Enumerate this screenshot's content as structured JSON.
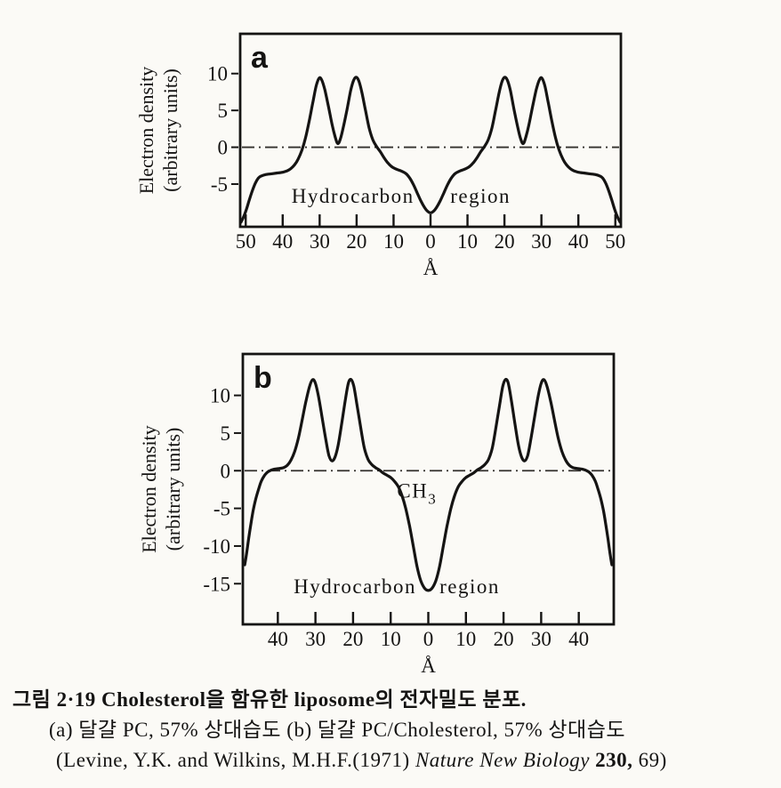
{
  "figure": {
    "background": "#fbfaf6",
    "ink": "#151413",
    "description": "Scanned textbook figure: electron density profiles of liposome bilayers"
  },
  "chart_data": [
    {
      "type": "line",
      "panel_label": "a",
      "xlabel": "Å",
      "ylabel": "Electron density (arbitrary units)",
      "ylabel_lines": [
        "Electron density",
        "(arbitrary units)"
      ],
      "xlim": [
        -51.5,
        51.5
      ],
      "ylim": [
        -10.8,
        15.4
      ],
      "x_tick_values": [
        -50,
        -40,
        -30,
        -20,
        -10,
        0,
        10,
        20,
        30,
        40,
        50
      ],
      "x_tick_labels": [
        "50",
        "40",
        "30",
        "20",
        "10",
        "0",
        "10",
        "20",
        "30",
        "40",
        "50"
      ],
      "y_tick_values": [
        10,
        5,
        0,
        -5
      ],
      "y_tick_labels": [
        "10",
        "5",
        "0",
        "-5"
      ],
      "grid": false,
      "zero_line_style": "dash-dot",
      "annotations": [
        {
          "text": "Hydrocarbon",
          "x": -21,
          "y": -6.6
        },
        {
          "text": "region",
          "x": 13.5,
          "y": -6.6
        }
      ],
      "series": [
        {
          "name": "electron-density-profile-egg-PC",
          "symmetric_about_x0": true,
          "points_left_half": [
            [
              -51.3,
              -10.2
            ],
            [
              -50.6,
              -9.5
            ],
            [
              -49.8,
              -8.4
            ],
            [
              -49,
              -7.1
            ],
            [
              -48.2,
              -5.9
            ],
            [
              -47.4,
              -4.9
            ],
            [
              -46.6,
              -4.2
            ],
            [
              -45.8,
              -3.9
            ],
            [
              -44.5,
              -3.7
            ],
            [
              -43,
              -3.6
            ],
            [
              -41.5,
              -3.5
            ],
            [
              -40,
              -3.4
            ],
            [
              -38.8,
              -3.2
            ],
            [
              -37.8,
              -2.9
            ],
            [
              -36.8,
              -2.4
            ],
            [
              -35.8,
              -1.6
            ],
            [
              -34.8,
              -0.4
            ],
            [
              -33.8,
              1.3
            ],
            [
              -32.8,
              3.6
            ],
            [
              -31.8,
              6.2
            ],
            [
              -30.9,
              8.4
            ],
            [
              -30.1,
              9.4
            ],
            [
              -29.4,
              9.1
            ],
            [
              -28.6,
              7.8
            ],
            [
              -27.6,
              5.5
            ],
            [
              -26.6,
              3.0
            ],
            [
              -25.8,
              1.4
            ],
            [
              -25.1,
              0.5
            ],
            [
              -24.4,
              1.1
            ],
            [
              -23.6,
              2.7
            ],
            [
              -22.6,
              5.1
            ],
            [
              -21.6,
              7.7
            ],
            [
              -20.8,
              9.1
            ],
            [
              -20.1,
              9.5
            ],
            [
              -19.4,
              9.0
            ],
            [
              -18.6,
              7.5
            ],
            [
              -17.6,
              5.0
            ],
            [
              -16.6,
              2.6
            ],
            [
              -15.6,
              1.0
            ],
            [
              -14.6,
              0.1
            ],
            [
              -13.6,
              -0.6
            ],
            [
              -12.6,
              -1.4
            ],
            [
              -11.6,
              -2.1
            ],
            [
              -10.6,
              -2.6
            ],
            [
              -9.6,
              -2.9
            ],
            [
              -8.6,
              -3.1
            ],
            [
              -7.6,
              -3.3
            ],
            [
              -6.6,
              -3.6
            ],
            [
              -5.6,
              -4.2
            ],
            [
              -4.6,
              -5.1
            ],
            [
              -3.6,
              -6.2
            ],
            [
              -2.6,
              -7.3
            ],
            [
              -1.6,
              -8.2
            ],
            [
              -0.8,
              -8.7
            ],
            [
              0,
              -8.9
            ]
          ]
        }
      ]
    },
    {
      "type": "line",
      "panel_label": "b",
      "xlabel": "Å",
      "ylabel": "Electron density (arbitrary units)",
      "ylabel_lines": [
        "Electron density",
        "(arbitrary units)"
      ],
      "xlim": [
        -49.3,
        49.3
      ],
      "ylim": [
        -20.4,
        15.5
      ],
      "x_tick_values": [
        -40,
        -30,
        -20,
        -10,
        0,
        10,
        20,
        30,
        40
      ],
      "x_tick_labels": [
        "40",
        "30",
        "20",
        "10",
        "0",
        "10",
        "20",
        "30",
        "40"
      ],
      "y_tick_values": [
        10,
        5,
        0,
        -5,
        -10,
        -15
      ],
      "y_tick_labels": [
        "10",
        "5",
        "0",
        "-5",
        "-10",
        "-15"
      ],
      "grid": false,
      "zero_line_style": "dash-dot",
      "annotations": [
        {
          "text": "CH",
          "sub": "3",
          "x": -3,
          "y": -2.6
        },
        {
          "text": "Hydrocarbon",
          "x": -19.5,
          "y": -15.3
        },
        {
          "text": "region",
          "x": 11,
          "y": -15.3
        }
      ],
      "series": [
        {
          "name": "electron-density-profile-egg-PC-cholesterol",
          "symmetric_about_x0": true,
          "points_left_half": [
            [
              -48.8,
              -12.5
            ],
            [
              -48.3,
              -11.0
            ],
            [
              -47.8,
              -9.2
            ],
            [
              -47.2,
              -7.2
            ],
            [
              -46.6,
              -5.4
            ],
            [
              -46,
              -4.0
            ],
            [
              -45.2,
              -2.6
            ],
            [
              -44.4,
              -1.4
            ],
            [
              -43.5,
              -0.6
            ],
            [
              -42.5,
              -0.1
            ],
            [
              -41,
              0.2
            ],
            [
              -39.5,
              0.3
            ],
            [
              -38.5,
              0.4
            ],
            [
              -37.5,
              0.7
            ],
            [
              -36.5,
              1.4
            ],
            [
              -35.5,
              2.6
            ],
            [
              -34.5,
              4.4
            ],
            [
              -33.5,
              6.8
            ],
            [
              -32.5,
              9.3
            ],
            [
              -31.5,
              11.3
            ],
            [
              -30.7,
              12.1
            ],
            [
              -30,
              11.6
            ],
            [
              -29.2,
              9.9
            ],
            [
              -28.2,
              7.0
            ],
            [
              -27.2,
              4.0
            ],
            [
              -26.4,
              2.0
            ],
            [
              -25.6,
              1.3
            ],
            [
              -24.8,
              1.8
            ],
            [
              -24,
              3.3
            ],
            [
              -23,
              6.3
            ],
            [
              -22,
              9.6
            ],
            [
              -21.2,
              11.7
            ],
            [
              -20.5,
              12.1
            ],
            [
              -19.8,
              11.2
            ],
            [
              -19,
              8.9
            ],
            [
              -18,
              5.8
            ],
            [
              -17,
              3.0
            ],
            [
              -16,
              1.5
            ],
            [
              -15,
              0.8
            ],
            [
              -14,
              0.4
            ],
            [
              -13,
              0.1
            ],
            [
              -12,
              -0.3
            ],
            [
              -11,
              -0.6
            ],
            [
              -10,
              -0.9
            ],
            [
              -9,
              -1.4
            ],
            [
              -8,
              -2.1
            ],
            [
              -7,
              -3.3
            ],
            [
              -6,
              -5.0
            ],
            [
              -5,
              -7.3
            ],
            [
              -4,
              -10.0
            ],
            [
              -3,
              -12.7
            ],
            [
              -2,
              -14.6
            ],
            [
              -1,
              -15.6
            ],
            [
              0,
              -15.9
            ]
          ]
        }
      ]
    }
  ],
  "caption": {
    "line1": "그림 2·19  Cholesterol을 함유한 liposome의 전자밀도 분포.",
    "line2": "(a) 달걀 PC, 57% 상대습도 (b) 달걀 PC/Cholesterol, 57% 상대습도",
    "line3_prefix": "(Levine, Y.K. and Wilkins, M.H.F.(1971) ",
    "line3_journal": "Nature New Biology",
    "line3_volume": " 230,",
    "line3_suffix": " 69)"
  }
}
